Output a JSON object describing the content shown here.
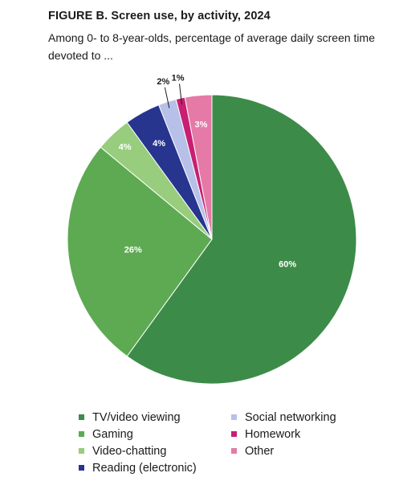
{
  "chart_data": {
    "type": "pie",
    "title": "FIGURE B. Screen use, by activity, 2024",
    "subtitle": "Among 0- to 8-year-olds, percentage of average daily screen time devoted to ...",
    "slices": [
      {
        "name": "TV/video viewing",
        "value": 60,
        "label": "60%",
        "color": "#3d8b48"
      },
      {
        "name": "Gaming",
        "value": 26,
        "label": "26%",
        "color": "#5daa52"
      },
      {
        "name": "Video-chatting",
        "value": 4,
        "label": "4%",
        "color": "#97cd7c"
      },
      {
        "name": "Reading (electronic)",
        "value": 4,
        "label": "4%",
        "color": "#27358f"
      },
      {
        "name": "Social networking",
        "value": 2,
        "label": "2%",
        "color": "#b7c0e8"
      },
      {
        "name": "Homework",
        "value": 1,
        "label": "1%",
        "color": "#c81f72"
      },
      {
        "name": "Other",
        "value": 3,
        "label": "3%",
        "color": "#e57aa7"
      }
    ],
    "legend_order": [
      "TV/video viewing",
      "Gaming",
      "Video-chatting",
      "Reading (electronic)",
      "Social networking",
      "Homework",
      "Other"
    ],
    "legend_placement": "bottom"
  }
}
